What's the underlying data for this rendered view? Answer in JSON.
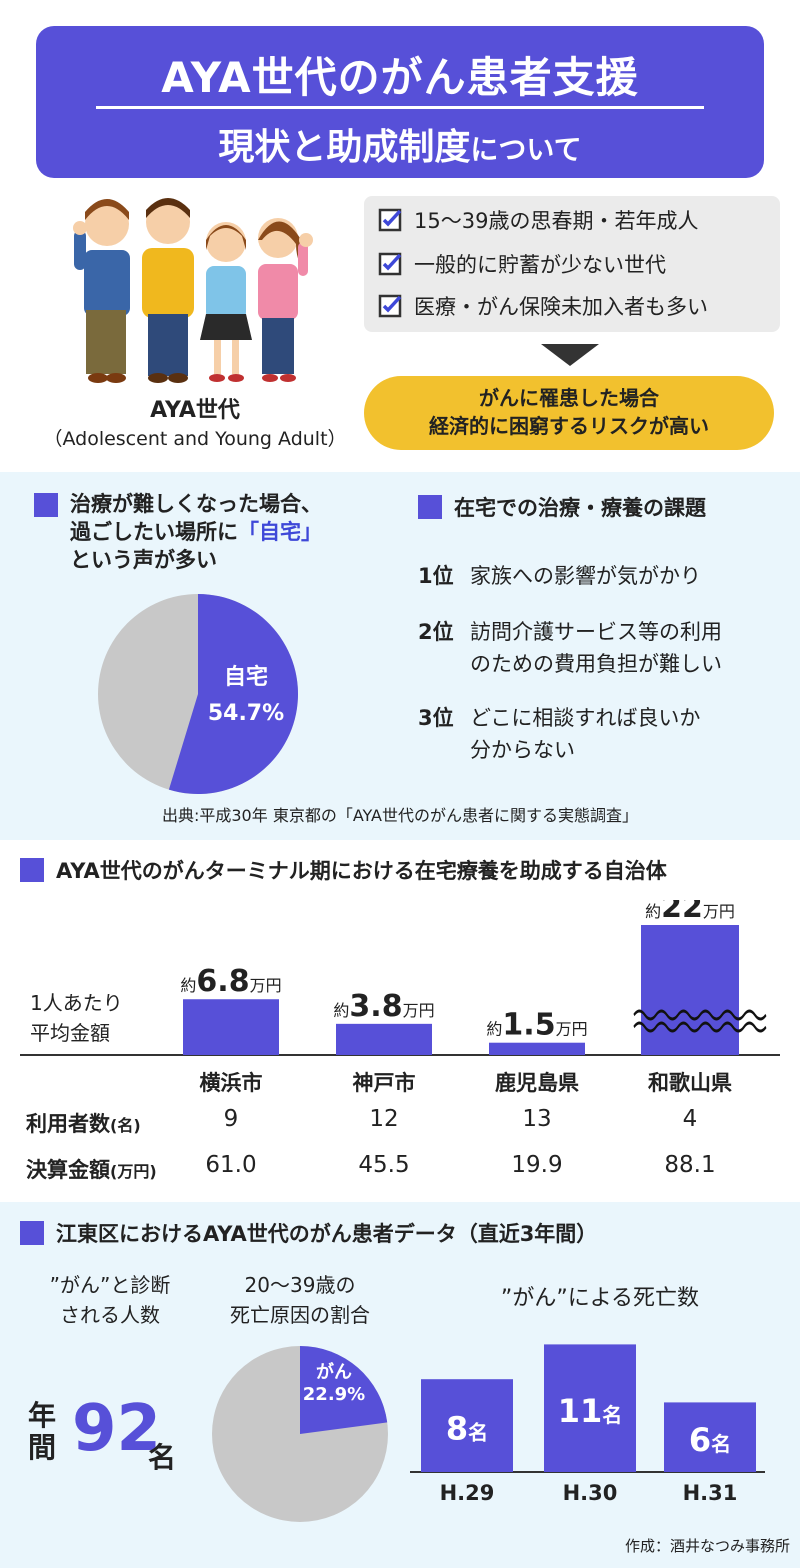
{
  "header": {
    "title_line1": "AYA世代のがん患者支援",
    "title_line2_main": "現状と助成制度",
    "title_line2_small": "について"
  },
  "intro": {
    "aya_label": "AYA世代",
    "aya_sub": "（Adolescent and Young Adult）",
    "checklist": [
      "15〜39歳の思春期・若年成人",
      "一般的に貯蓄が少ない世代",
      "医療・がん保険未加入者も多い"
    ],
    "risk_line1": "がんに罹患した場合",
    "risk_line2": "経済的に困窮するリスクが高い"
  },
  "home_care": {
    "heading_line1": "治療が難しくなった場合、",
    "heading_line2_pre": "過ごしたい場所に",
    "heading_line2_accent": "「自宅」",
    "heading_line3": "という声が多い",
    "pie_label": "自宅",
    "pie_value": "54.7%",
    "source": "出典:平成30年 東京都の「AYA世代のがん患者に関する実態調査」"
  },
  "issues": {
    "heading": "在宅での治療・療養の課題",
    "ranks": [
      {
        "num": "1位",
        "text1": "家族への影響が気がかり",
        "text2": ""
      },
      {
        "num": "2位",
        "text1": "訪問介護サービス等の利用",
        "text2": "のための費用負担が難しい"
      },
      {
        "num": "3位",
        "text1": "どこに相談すれば良いか",
        "text2": "分からない"
      }
    ]
  },
  "municipalities": {
    "heading": "AYA世代のがんターミナル期における在宅療養を助成する自治体",
    "per_person_line1": "1人あたり",
    "per_person_line2": "平均金額",
    "row_users": "利用者数",
    "row_users_unit": "(名)",
    "row_budget": "決算金額",
    "row_budget_unit": "(万円)",
    "cities": [
      {
        "name": "横浜市",
        "prefix": "約",
        "amount": "6.8",
        "unit": "万円",
        "users": "9",
        "budget": "61.0"
      },
      {
        "name": "神戸市",
        "prefix": "約",
        "amount": "3.8",
        "unit": "万円",
        "users": "12",
        "budget": "45.5"
      },
      {
        "name": "鹿児島県",
        "prefix": "約",
        "amount": "1.5",
        "unit": "万円",
        "users": "13",
        "budget": "19.9"
      },
      {
        "name": "和歌山県",
        "prefix": "約",
        "amount": "22",
        "unit": "万円",
        "users": "4",
        "budget": "88.1"
      }
    ]
  },
  "koto": {
    "heading": "江東区におけるAYA世代のがん患者データ（直近3年間）",
    "diag_line1": "”がん”と診断",
    "diag_line2": "される人数",
    "ratio_line1": "20〜39歳の",
    "ratio_line2": "死亡原因の割合",
    "count_label": "”がん”による死亡数",
    "yearly_nen": "年",
    "yearly_kan": "間",
    "yearly_value": "92",
    "yearly_unit": "名",
    "pie_label": "がん",
    "pie_value": "22.9%",
    "credit": "作成：酒井なつみ事務所"
  },
  "chart_data": [
    {
      "type": "bar",
      "title": "AYA世代のがんターミナル期における在宅療養を助成する自治体",
      "categories": [
        "横浜市",
        "神戸市",
        "鹿児島県",
        "和歌山県"
      ],
      "series": [
        {
          "name": "1人あたり平均金額",
          "values": [
            6.8,
            3.8,
            1.5,
            22
          ]
        },
        {
          "name": "利用者数",
          "values": [
            9,
            12,
            13,
            4
          ]
        },
        {
          "name": "決算金額",
          "values": [
            61.0,
            45.5,
            19.9,
            88.1
          ]
        }
      ],
      "axis_break": "和歌山県"
    },
    {
      "type": "bar",
      "title": "”がん”による死亡数",
      "categories": [
        "H.29",
        "H.30",
        "H.31"
      ],
      "values": [
        8,
        11,
        6
      ],
      "value_unit": "名"
    },
    {
      "type": "pie",
      "title": "過ごしたい場所",
      "categories": [
        "自宅",
        ""
      ],
      "values": [
        54.7,
        45.3
      ]
    },
    {
      "type": "pie",
      "title": "20〜39歳の死亡原因の割合",
      "categories": [
        "がん",
        ""
      ],
      "values": [
        22.9,
        77.1
      ]
    }
  ],
  "colors": {
    "accent": "#5750d8",
    "yellow": "#f2c12e",
    "light_bg": "#eaf6fc",
    "pie_gray": "#c8c8c8"
  }
}
